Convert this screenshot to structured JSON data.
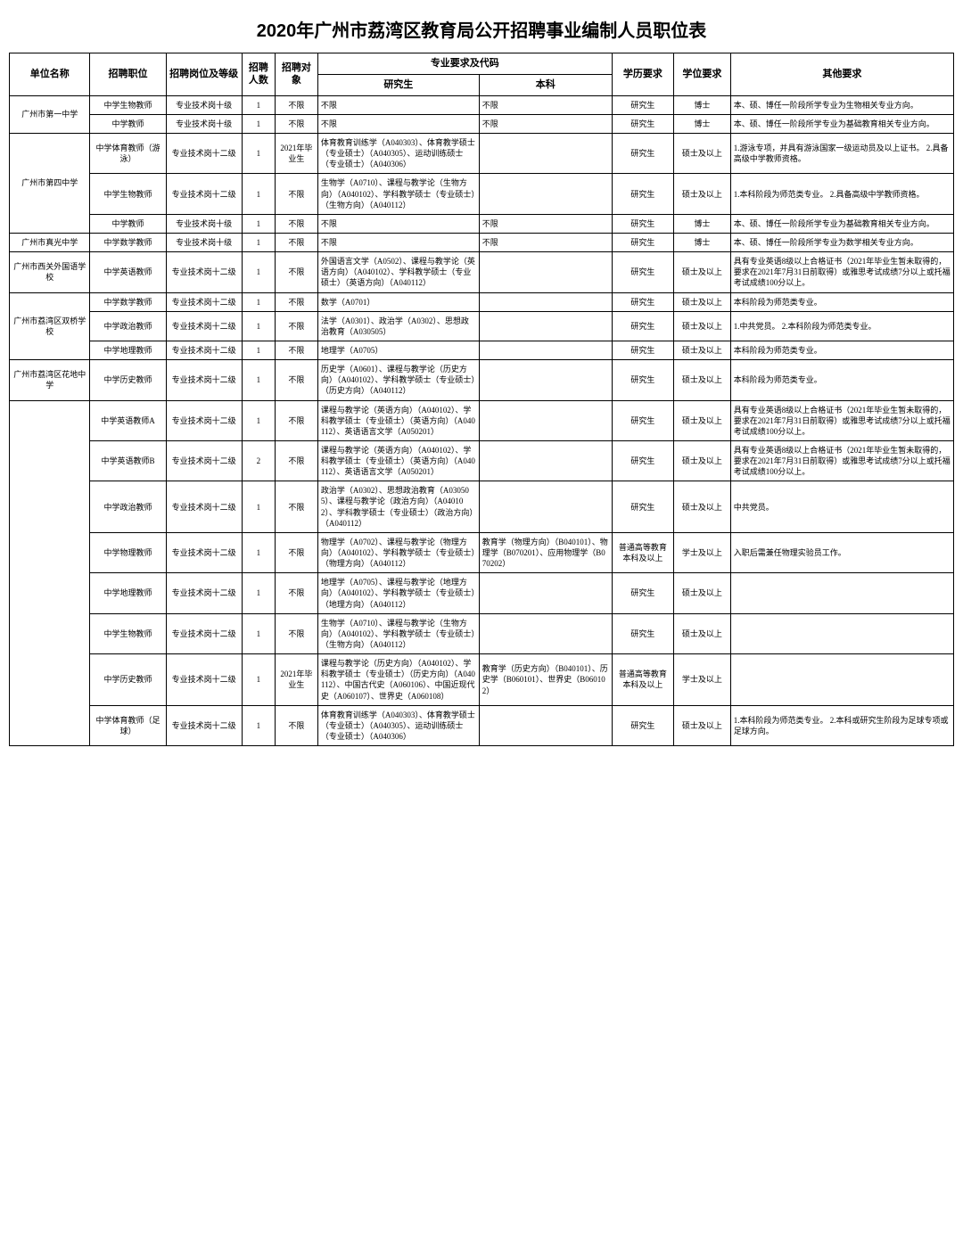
{
  "title": "2020年广州市荔湾区教育局公开招聘事业编制人员职位表",
  "headers": {
    "unit": "单位名称",
    "position": "招聘职位",
    "grade": "招聘岗位及等级",
    "num": "招聘人数",
    "object": "招聘对象",
    "majorGroup": "专业要求及代码",
    "grad": "研究生",
    "under": "本科",
    "edu": "学历要求",
    "degree": "学位要求",
    "other": "其他要求"
  },
  "units": [
    {
      "name": "广州市第一中学",
      "rows": [
        {
          "position": "中学生物教师",
          "grade": "专业技术岗十级",
          "num": "1",
          "object": "不限",
          "grad": "不限",
          "under": "不限",
          "edu": "研究生",
          "degree": "博士",
          "other": "本、硕、博任一阶段所学专业为生物相关专业方向。"
        },
        {
          "position": "中学教师",
          "grade": "专业技术岗十级",
          "num": "1",
          "object": "不限",
          "grad": "不限",
          "under": "不限",
          "edu": "研究生",
          "degree": "博士",
          "other": "本、硕、博任一阶段所学专业为基础教育相关专业方向。"
        }
      ]
    },
    {
      "name": "广州市第四中学",
      "rows": [
        {
          "position": "中学体育教师（游泳）",
          "grade": "专业技术岗十二级",
          "num": "1",
          "object": "2021年毕业生",
          "grad": "体育教育训练学（A040303）、体育教学硕士（专业硕士）（A040305）、运动训练硕士（专业硕士）（A040306）",
          "under": "",
          "edu": "研究生",
          "degree": "硕士及以上",
          "other": "1.游泳专项，并具有游泳国家一级运动员及以上证书。\n2.具备高级中学教师资格。"
        },
        {
          "position": "中学生物教师",
          "grade": "专业技术岗十二级",
          "num": "1",
          "object": "不限",
          "grad": "生物学（A0710）、课程与教学论（生物方向）（A040102）、学科教学硕士（专业硕士）（生物方向）（A040112）",
          "under": "",
          "edu": "研究生",
          "degree": "硕士及以上",
          "other": "1.本科阶段为师范类专业。\n2.具备高级中学教师资格。"
        },
        {
          "position": "中学教师",
          "grade": "专业技术岗十级",
          "num": "1",
          "object": "不限",
          "grad": "不限",
          "under": "不限",
          "edu": "研究生",
          "degree": "博士",
          "other": "本、硕、博任一阶段所学专业为基础教育相关专业方向。"
        }
      ]
    },
    {
      "name": "广州市真光中学",
      "rows": [
        {
          "position": "中学数学教师",
          "grade": "专业技术岗十级",
          "num": "1",
          "object": "不限",
          "grad": "不限",
          "under": "不限",
          "edu": "研究生",
          "degree": "博士",
          "other": "本、硕、博任一阶段所学专业为数学相关专业方向。"
        }
      ]
    },
    {
      "name": "广州市西关外国语学校",
      "rows": [
        {
          "position": "中学英语教师",
          "grade": "专业技术岗十二级",
          "num": "1",
          "object": "不限",
          "grad": "外国语言文学（A0502）、课程与教学论（英语方向）（A040102）、学科教学硕士（专业硕士）（英语方向）（A040112）",
          "under": "",
          "edu": "研究生",
          "degree": "硕士及以上",
          "other": "具有专业英语8级以上合格证书（2021年毕业生暂未取得的，要求在2021年7月31日前取得）或雅思考试成绩7分以上或托福考试成绩100分以上。"
        }
      ]
    },
    {
      "name": "广州市荔湾区双桥学校",
      "rows": [
        {
          "position": "中学数学教师",
          "grade": "专业技术岗十二级",
          "num": "1",
          "object": "不限",
          "grad": "数学（A0701）",
          "under": "",
          "edu": "研究生",
          "degree": "硕士及以上",
          "other": "本科阶段为师范类专业。"
        },
        {
          "position": "中学政治教师",
          "grade": "专业技术岗十二级",
          "num": "1",
          "object": "不限",
          "grad": "法学（A0301）、政治学（A0302）、思想政治教育（A030505）",
          "under": "",
          "edu": "研究生",
          "degree": "硕士及以上",
          "other": "1.中共党员。\n2.本科阶段为师范类专业。"
        },
        {
          "position": "中学地理教师",
          "grade": "专业技术岗十二级",
          "num": "1",
          "object": "不限",
          "grad": "地理学（A0705）",
          "under": "",
          "edu": "研究生",
          "degree": "硕士及以上",
          "other": "本科阶段为师范类专业。"
        }
      ]
    },
    {
      "name": "广州市荔湾区花地中学",
      "rows": [
        {
          "position": "中学历史教师",
          "grade": "专业技术岗十二级",
          "num": "1",
          "object": "不限",
          "grad": "历史学（A0601）、课程与教学论（历史方向）（A040102）、学科教学硕士（专业硕士）（历史方向）（A040112）",
          "under": "",
          "edu": "研究生",
          "degree": "硕士及以上",
          "other": "本科阶段为师范类专业。"
        }
      ]
    },
    {
      "name": "",
      "rows": [
        {
          "position": "中学英语教师A",
          "grade": "专业技术岗十二级",
          "num": "1",
          "object": "不限",
          "grad": "课程与教学论（英语方向）（A040102）、学科教学硕士（专业硕士）（英语方向）（A040112）、英语语言文学（A050201）",
          "under": "",
          "edu": "研究生",
          "degree": "硕士及以上",
          "other": "具有专业英语8级以上合格证书（2021年毕业生暂未取得的，要求在2021年7月31日前取得）或雅思考试成绩7分以上或托福考试成绩100分以上。"
        },
        {
          "position": "中学英语教师B",
          "grade": "专业技术岗十二级",
          "num": "2",
          "object": "不限",
          "grad": "课程与教学论（英语方向）（A040102）、学科教学硕士（专业硕士）（英语方向）（A040112）、英语语言文学（A050201）",
          "under": "",
          "edu": "研究生",
          "degree": "硕士及以上",
          "other": "具有专业英语8级以上合格证书（2021年毕业生暂未取得的，要求在2021年7月31日前取得）或雅思考试成绩7分以上或托福考试成绩100分以上。"
        },
        {
          "position": "中学政治教师",
          "grade": "专业技术岗十二级",
          "num": "1",
          "object": "不限",
          "grad": "政治学（A0302）、思想政治教育（A030505）、课程与教学论（政治方向）（A040102）、学科教学硕士（专业硕士）（政治方向）（A040112）",
          "under": "",
          "edu": "研究生",
          "degree": "硕士及以上",
          "other": "中共党员。"
        },
        {
          "position": "中学物理教师",
          "grade": "专业技术岗十二级",
          "num": "1",
          "object": "不限",
          "grad": "物理学（A0702）、课程与教学论（物理方向）（A040102）、学科教学硕士（专业硕士）（物理方向）（A040112）",
          "under": "教育学（物理方向）（B040101）、物理学（B070201）、应用物理学（B070202）",
          "edu": "普通高等教育本科及以上",
          "degree": "学士及以上",
          "other": "入职后需兼任物理实验员工作。"
        },
        {
          "position": "中学地理教师",
          "grade": "专业技术岗十二级",
          "num": "1",
          "object": "不限",
          "grad": "地理学（A0705）、课程与教学论（地理方向）（A040102）、学科教学硕士（专业硕士）（地理方向）（A040112）",
          "under": "",
          "edu": "研究生",
          "degree": "硕士及以上",
          "other": ""
        },
        {
          "position": "中学生物教师",
          "grade": "专业技术岗十二级",
          "num": "1",
          "object": "不限",
          "grad": "生物学（A0710）、课程与教学论（生物方向）（A040102）、学科教学硕士（专业硕士）（生物方向）（A040112）",
          "under": "",
          "edu": "研究生",
          "degree": "硕士及以上",
          "other": ""
        },
        {
          "position": "中学历史教师",
          "grade": "专业技术岗十二级",
          "num": "1",
          "object": "2021年毕业生",
          "grad": "课程与教学论（历史方向）（A040102）、学科教学硕士（专业硕士）（历史方向）（A040112）、中国古代史（A060106）、中国近现代史（A060107）、世界史（A060108）",
          "under": "教育学（历史方向）（B040101）、历史学（B060101）、世界史（B060102）",
          "edu": "普通高等教育本科及以上",
          "degree": "学士及以上",
          "other": ""
        },
        {
          "position": "中学体育教师（足球）",
          "grade": "专业技术岗十二级",
          "num": "1",
          "object": "不限",
          "grad": "体育教育训练学（A040303）、体育教学硕士（专业硕士）（A040305）、运动训练硕士（专业硕士）（A040306）",
          "under": "",
          "edu": "研究生",
          "degree": "硕士及以上",
          "other": "1.本科阶段为师范类专业。\n2.本科或研究生阶段为足球专项或足球方向。"
        }
      ]
    }
  ]
}
